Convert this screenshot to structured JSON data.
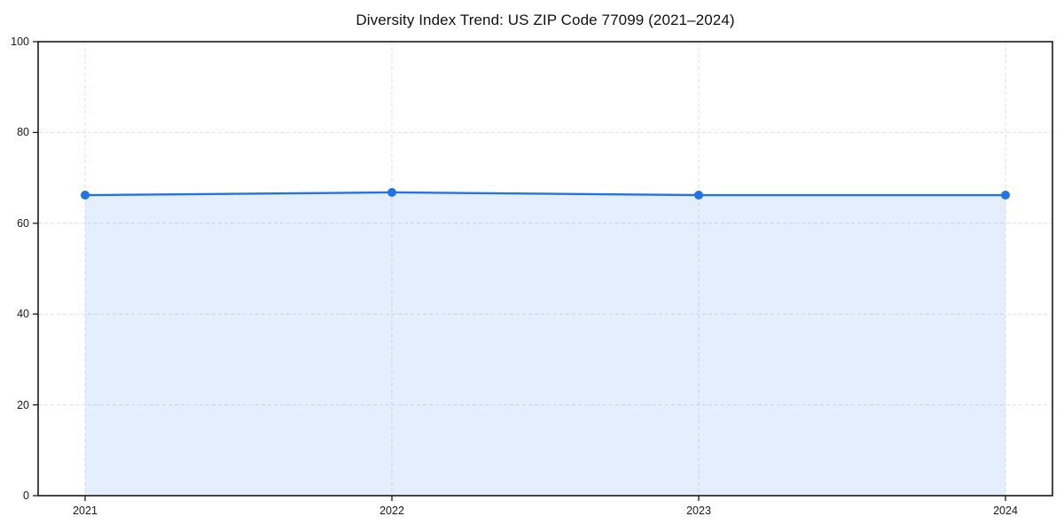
{
  "page": {
    "background": "#ffffff"
  },
  "chart_data": {
    "type": "area",
    "title": "Diversity Index Trend: US ZIP Code 77099 (2021–2024)",
    "categories": [
      "2021",
      "2022",
      "2023",
      "2024"
    ],
    "series": [
      {
        "name": "Diversity Index",
        "values": [
          66.2,
          66.8,
          66.2,
          66.2
        ]
      }
    ],
    "xlabel": "",
    "ylabel": "",
    "ylim": [
      0,
      100
    ],
    "yticks": [
      0,
      20,
      40,
      60,
      80,
      100
    ],
    "grid": "dashed-both-axes",
    "legend_position": "none",
    "marker": "circle",
    "colors": {
      "line": "#2274e4",
      "marker": "#2274e4",
      "fill": "rgba(34, 116, 228, 0.12)",
      "grid": "#e0e0e0",
      "spine": "#191919",
      "tick": "#191919",
      "tick_label": "#191919",
      "title": "#111111"
    }
  }
}
